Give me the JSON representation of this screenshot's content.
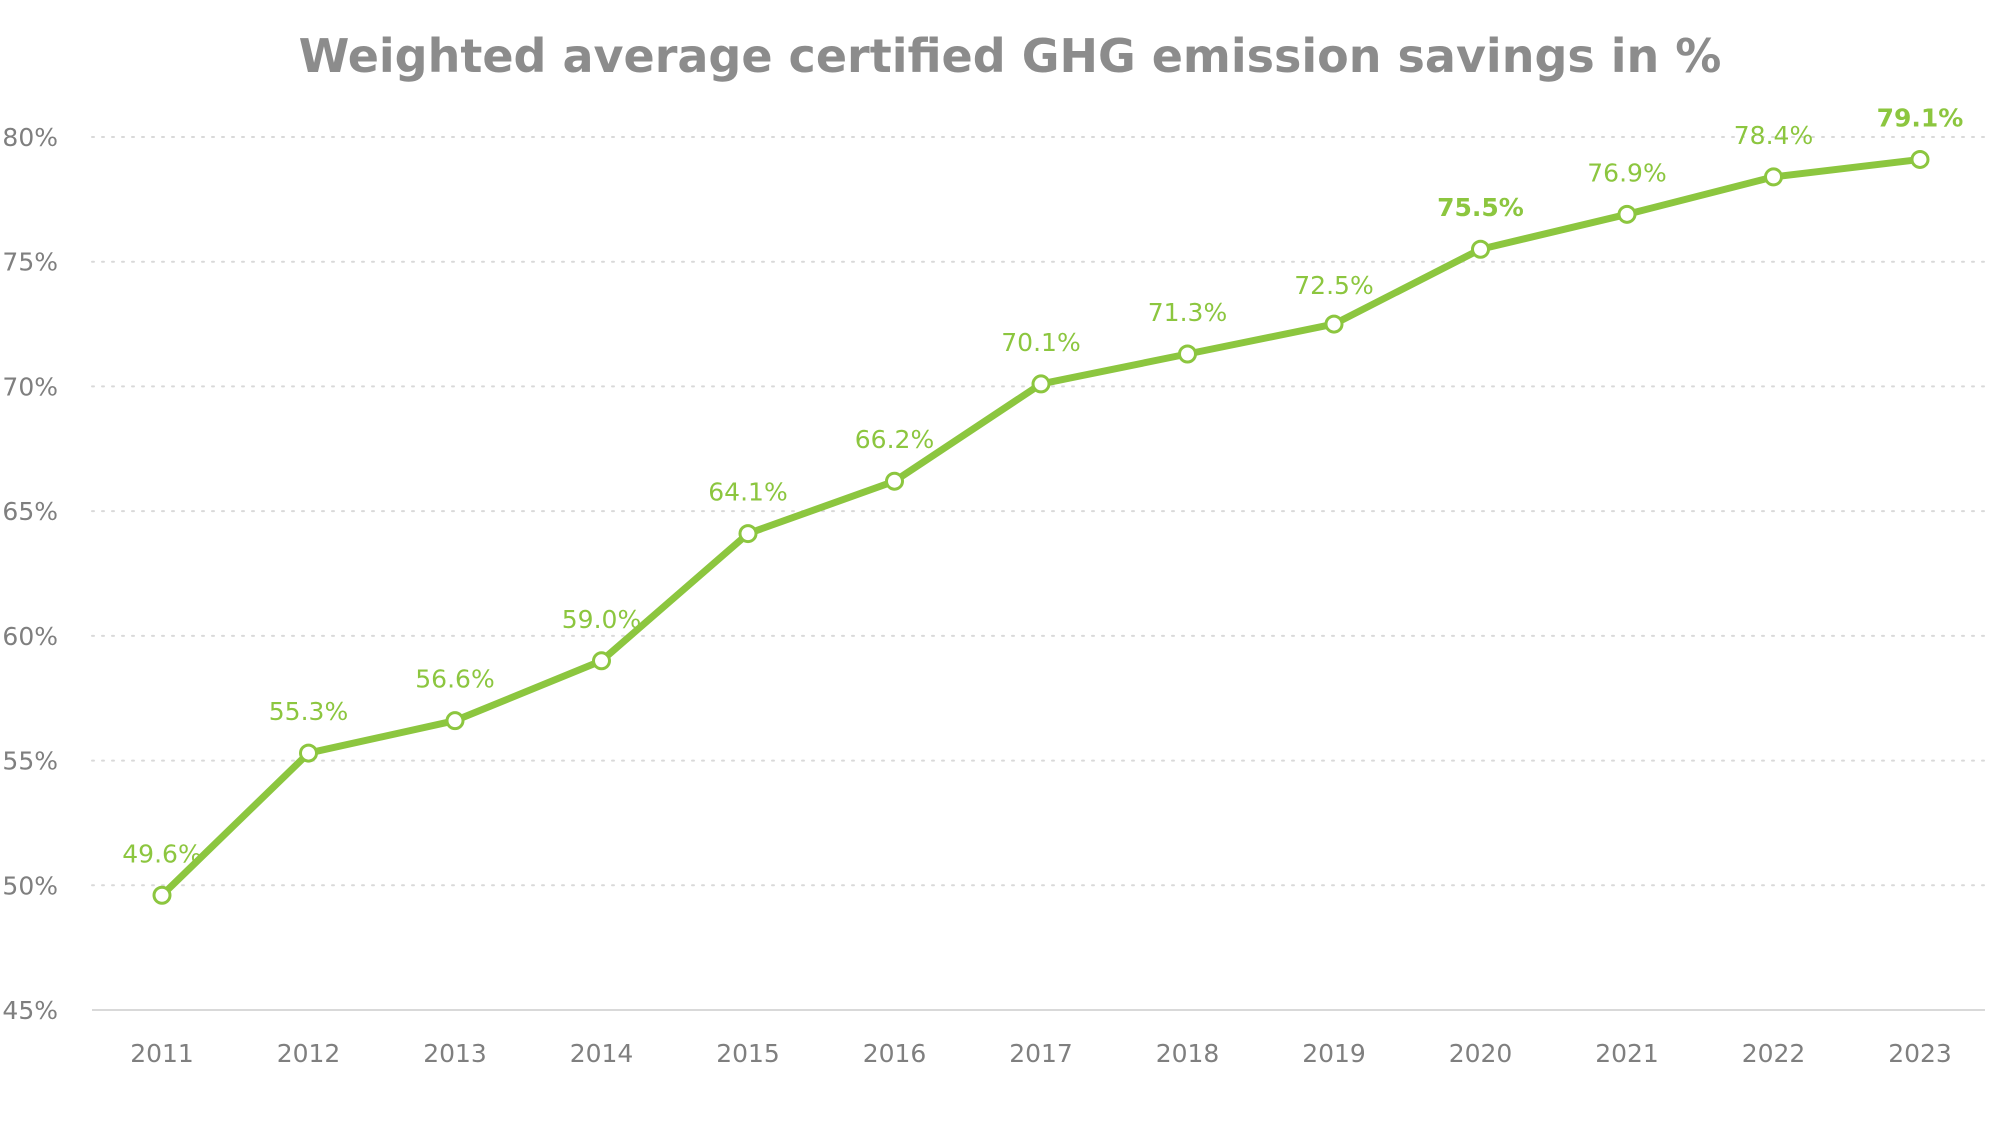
{
  "chart_data": {
    "type": "line",
    "title": "Weighted average certified GHG emission savings in %",
    "xlabel": "",
    "ylabel": "",
    "categories": [
      "2011",
      "2012",
      "2013",
      "2014",
      "2015",
      "2016",
      "2017",
      "2018",
      "2019",
      "2020",
      "2021",
      "2022",
      "2023"
    ],
    "series": [
      {
        "values": [
          49.6,
          55.3,
          56.6,
          59.0,
          64.1,
          66.2,
          70.1,
          71.3,
          72.5,
          75.5,
          76.9,
          78.4,
          79.1
        ],
        "data_labels": [
          "49.6%",
          "55.3%",
          "56.6%",
          "59.0%",
          "64.1%",
          "66.2%",
          "70.1%",
          "71.3%",
          "72.5%",
          "75.5%",
          "76.9%",
          "78.4%",
          "79.1%"
        ],
        "bold_labels": [
          "2020",
          "2023"
        ],
        "enlarged_labels": [
          "2019"
        ]
      }
    ],
    "ylim": [
      45,
      80
    ],
    "yticks": [
      45,
      50,
      55,
      60,
      65,
      70,
      75,
      80
    ],
    "ytick_labels": [
      "45%",
      "50%",
      "55%",
      "60%",
      "65%",
      "70%",
      "75%",
      "80%"
    ],
    "grid": true,
    "legend": false,
    "colors": {
      "line": "#8cc63f",
      "marker_fill": "#ffffff",
      "labels": "#8cc63f",
      "title": "#8c8c8c",
      "ticks": "#7f7f7f",
      "grid": "#d9d9d9"
    }
  }
}
